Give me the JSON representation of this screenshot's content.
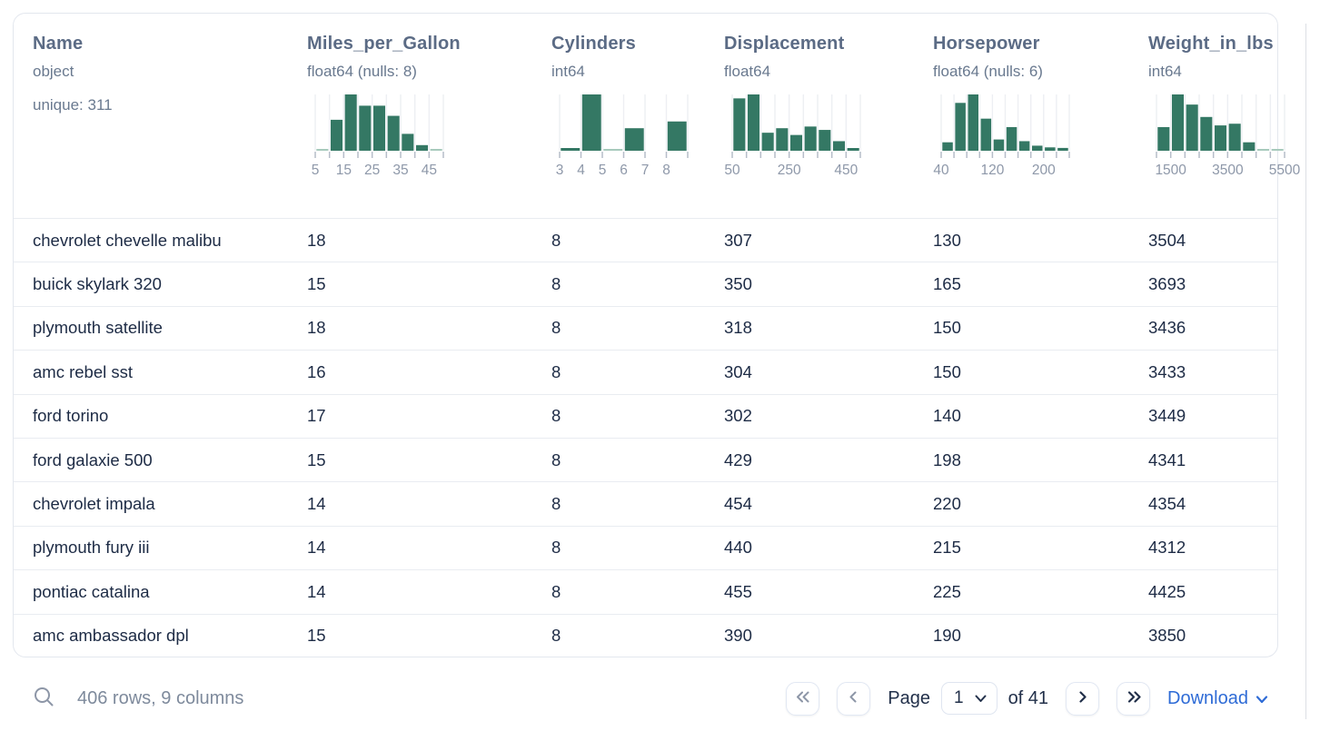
{
  "table": {
    "columns": [
      {
        "key": "name",
        "title": "Name",
        "dtype": "object",
        "meta": "unique: 311"
      },
      {
        "key": "mpg",
        "title": "Miles_per_Gallon",
        "dtype": "float64 (nulls: 8)"
      },
      {
        "key": "cyl",
        "title": "Cylinders",
        "dtype": "int64"
      },
      {
        "key": "disp",
        "title": "Displacement",
        "dtype": "float64"
      },
      {
        "key": "hp",
        "title": "Horsepower",
        "dtype": "float64 (nulls: 6)"
      },
      {
        "key": "wt",
        "title": "Weight_in_lbs",
        "dtype": "int64"
      }
    ],
    "rows": [
      {
        "name": "chevrolet chevelle malibu",
        "mpg": "18",
        "cyl": "8",
        "disp": "307",
        "hp": "130",
        "wt": "3504"
      },
      {
        "name": "buick skylark 320",
        "mpg": "15",
        "cyl": "8",
        "disp": "350",
        "hp": "165",
        "wt": "3693"
      },
      {
        "name": "plymouth satellite",
        "mpg": "18",
        "cyl": "8",
        "disp": "318",
        "hp": "150",
        "wt": "3436"
      },
      {
        "name": "amc rebel sst",
        "mpg": "16",
        "cyl": "8",
        "disp": "304",
        "hp": "150",
        "wt": "3433"
      },
      {
        "name": "ford torino",
        "mpg": "17",
        "cyl": "8",
        "disp": "302",
        "hp": "140",
        "wt": "3449"
      },
      {
        "name": "ford galaxie 500",
        "mpg": "15",
        "cyl": "8",
        "disp": "429",
        "hp": "198",
        "wt": "4341"
      },
      {
        "name": "chevrolet impala",
        "mpg": "14",
        "cyl": "8",
        "disp": "454",
        "hp": "220",
        "wt": "4354"
      },
      {
        "name": "plymouth fury iii",
        "mpg": "14",
        "cyl": "8",
        "disp": "440",
        "hp": "215",
        "wt": "4312"
      },
      {
        "name": "pontiac catalina",
        "mpg": "14",
        "cyl": "8",
        "disp": "455",
        "hp": "225",
        "wt": "4425"
      },
      {
        "name": "amc ambassador dpl",
        "mpg": "15",
        "cyl": "8",
        "disp": "390",
        "hp": "190",
        "wt": "3850"
      }
    ]
  },
  "chart_data": [
    {
      "type": "bar",
      "kind": "histogram",
      "column_key": "mpg",
      "column": "Miles_per_Gallon",
      "bin_edges": [
        5,
        10,
        15,
        20,
        25,
        30,
        35,
        40,
        45,
        50
      ],
      "heights_pct_of_max": [
        2,
        55,
        100,
        80,
        80,
        62,
        30,
        10,
        2
      ],
      "tick_labels": [
        {
          "edge": 0,
          "text": "5"
        },
        {
          "edge": 2,
          "text": "15"
        },
        {
          "edge": 4,
          "text": "25"
        },
        {
          "edge": 6,
          "text": "35"
        },
        {
          "edge": 8,
          "text": "45"
        }
      ]
    },
    {
      "type": "bar",
      "kind": "histogram",
      "column_key": "cyl",
      "column": "Cylinders",
      "bin_edges": [
        3,
        4,
        5,
        6,
        7,
        8,
        9
      ],
      "heights_pct_of_max": [
        3,
        100,
        2,
        40,
        0,
        52
      ],
      "tick_labels": [
        {
          "edge": 0,
          "text": "3"
        },
        {
          "edge": 1,
          "text": "4"
        },
        {
          "edge": 2,
          "text": "5"
        },
        {
          "edge": 3,
          "text": "6"
        },
        {
          "edge": 4,
          "text": "7"
        },
        {
          "edge": 5,
          "text": "8"
        }
      ]
    },
    {
      "type": "bar",
      "kind": "histogram",
      "column_key": "disp",
      "column": "Displacement",
      "bin_edges": [
        50,
        100,
        150,
        200,
        250,
        300,
        350,
        400,
        450,
        500
      ],
      "heights_pct_of_max": [
        93,
        100,
        32,
        40,
        28,
        43,
        37,
        17,
        4
      ],
      "tick_labels": [
        {
          "edge": 0,
          "text": "50"
        },
        {
          "edge": 4,
          "text": "250"
        },
        {
          "edge": 8,
          "text": "450"
        }
      ]
    },
    {
      "type": "bar",
      "kind": "histogram",
      "column_key": "hp",
      "column": "Horsepower",
      "bin_edges": [
        40,
        60,
        80,
        100,
        120,
        140,
        160,
        180,
        200,
        220,
        240
      ],
      "heights_pct_of_max": [
        15,
        85,
        100,
        57,
        20,
        42,
        17,
        9,
        6,
        5
      ],
      "tick_labels": [
        {
          "edge": 0,
          "text": "40"
        },
        {
          "edge": 4,
          "text": "120"
        },
        {
          "edge": 8,
          "text": "200"
        }
      ]
    },
    {
      "type": "bar",
      "kind": "histogram",
      "column_key": "wt",
      "column": "Weight_in_lbs",
      "bin_edges": [
        1000,
        1500,
        2000,
        2500,
        3000,
        3500,
        4000,
        4500,
        5000,
        5500
      ],
      "heights_pct_of_max": [
        42,
        100,
        82,
        60,
        45,
        48,
        15,
        2,
        1
      ],
      "tick_labels": [
        {
          "edge": 1,
          "text": "1500"
        },
        {
          "edge": 5,
          "text": "3500"
        },
        {
          "edge": 9,
          "text": "5500"
        }
      ]
    }
  ],
  "style": {
    "bar_color": "#347864",
    "bar_color_faint": "#a7cabc",
    "gridline_color": "#edeff3",
    "tick_color": "#b6bdc9",
    "tick_label_color": "#8e98a9",
    "accent_blue": "#2e6bd6"
  },
  "footer": {
    "summary": "406 rows, 9 columns",
    "page_label": "Page",
    "page_value": "1",
    "of_label": "of 41",
    "download_label": "Download"
  }
}
